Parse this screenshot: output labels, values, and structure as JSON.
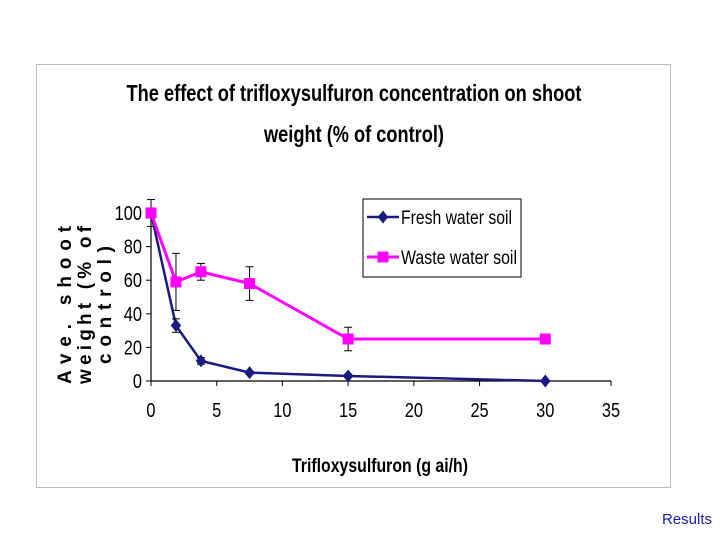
{
  "chart_data": {
    "type": "line",
    "title_lines": [
      "The effect of trifloxysulfuron concentration on shoot",
      "weight (% of control)"
    ],
    "xlabel": "Trifloxysulfuron (g ai/h)",
    "ylabel_lines": [
      "Ave. shoot",
      "weight (% of",
      "control)"
    ],
    "xlim": [
      0,
      35
    ],
    "ylim": [
      0,
      100
    ],
    "xticks": [
      "0",
      "5",
      "10",
      "15",
      "20",
      "25",
      "30",
      "35"
    ],
    "yticks": [
      "0",
      "20",
      "40",
      "60",
      "80",
      "100"
    ],
    "x": [
      0,
      1.9,
      3.8,
      7.5,
      15,
      30
    ],
    "series": [
      {
        "name": "Fresh water soil",
        "marker": "diamond",
        "color": "#1a1a80",
        "values": [
          100,
          33,
          12,
          5,
          3,
          0
        ],
        "errors": [
          8,
          4,
          2,
          1,
          1,
          0
        ]
      },
      {
        "name": "Waste water soil",
        "marker": "square",
        "color": "#ff00ff",
        "values": [
          100,
          59,
          65,
          58,
          25,
          25
        ],
        "errors": [
          3,
          17,
          5,
          10,
          7,
          0
        ]
      }
    ],
    "legend_position": "top-right"
  },
  "footer": {
    "link_label": "Results"
  }
}
